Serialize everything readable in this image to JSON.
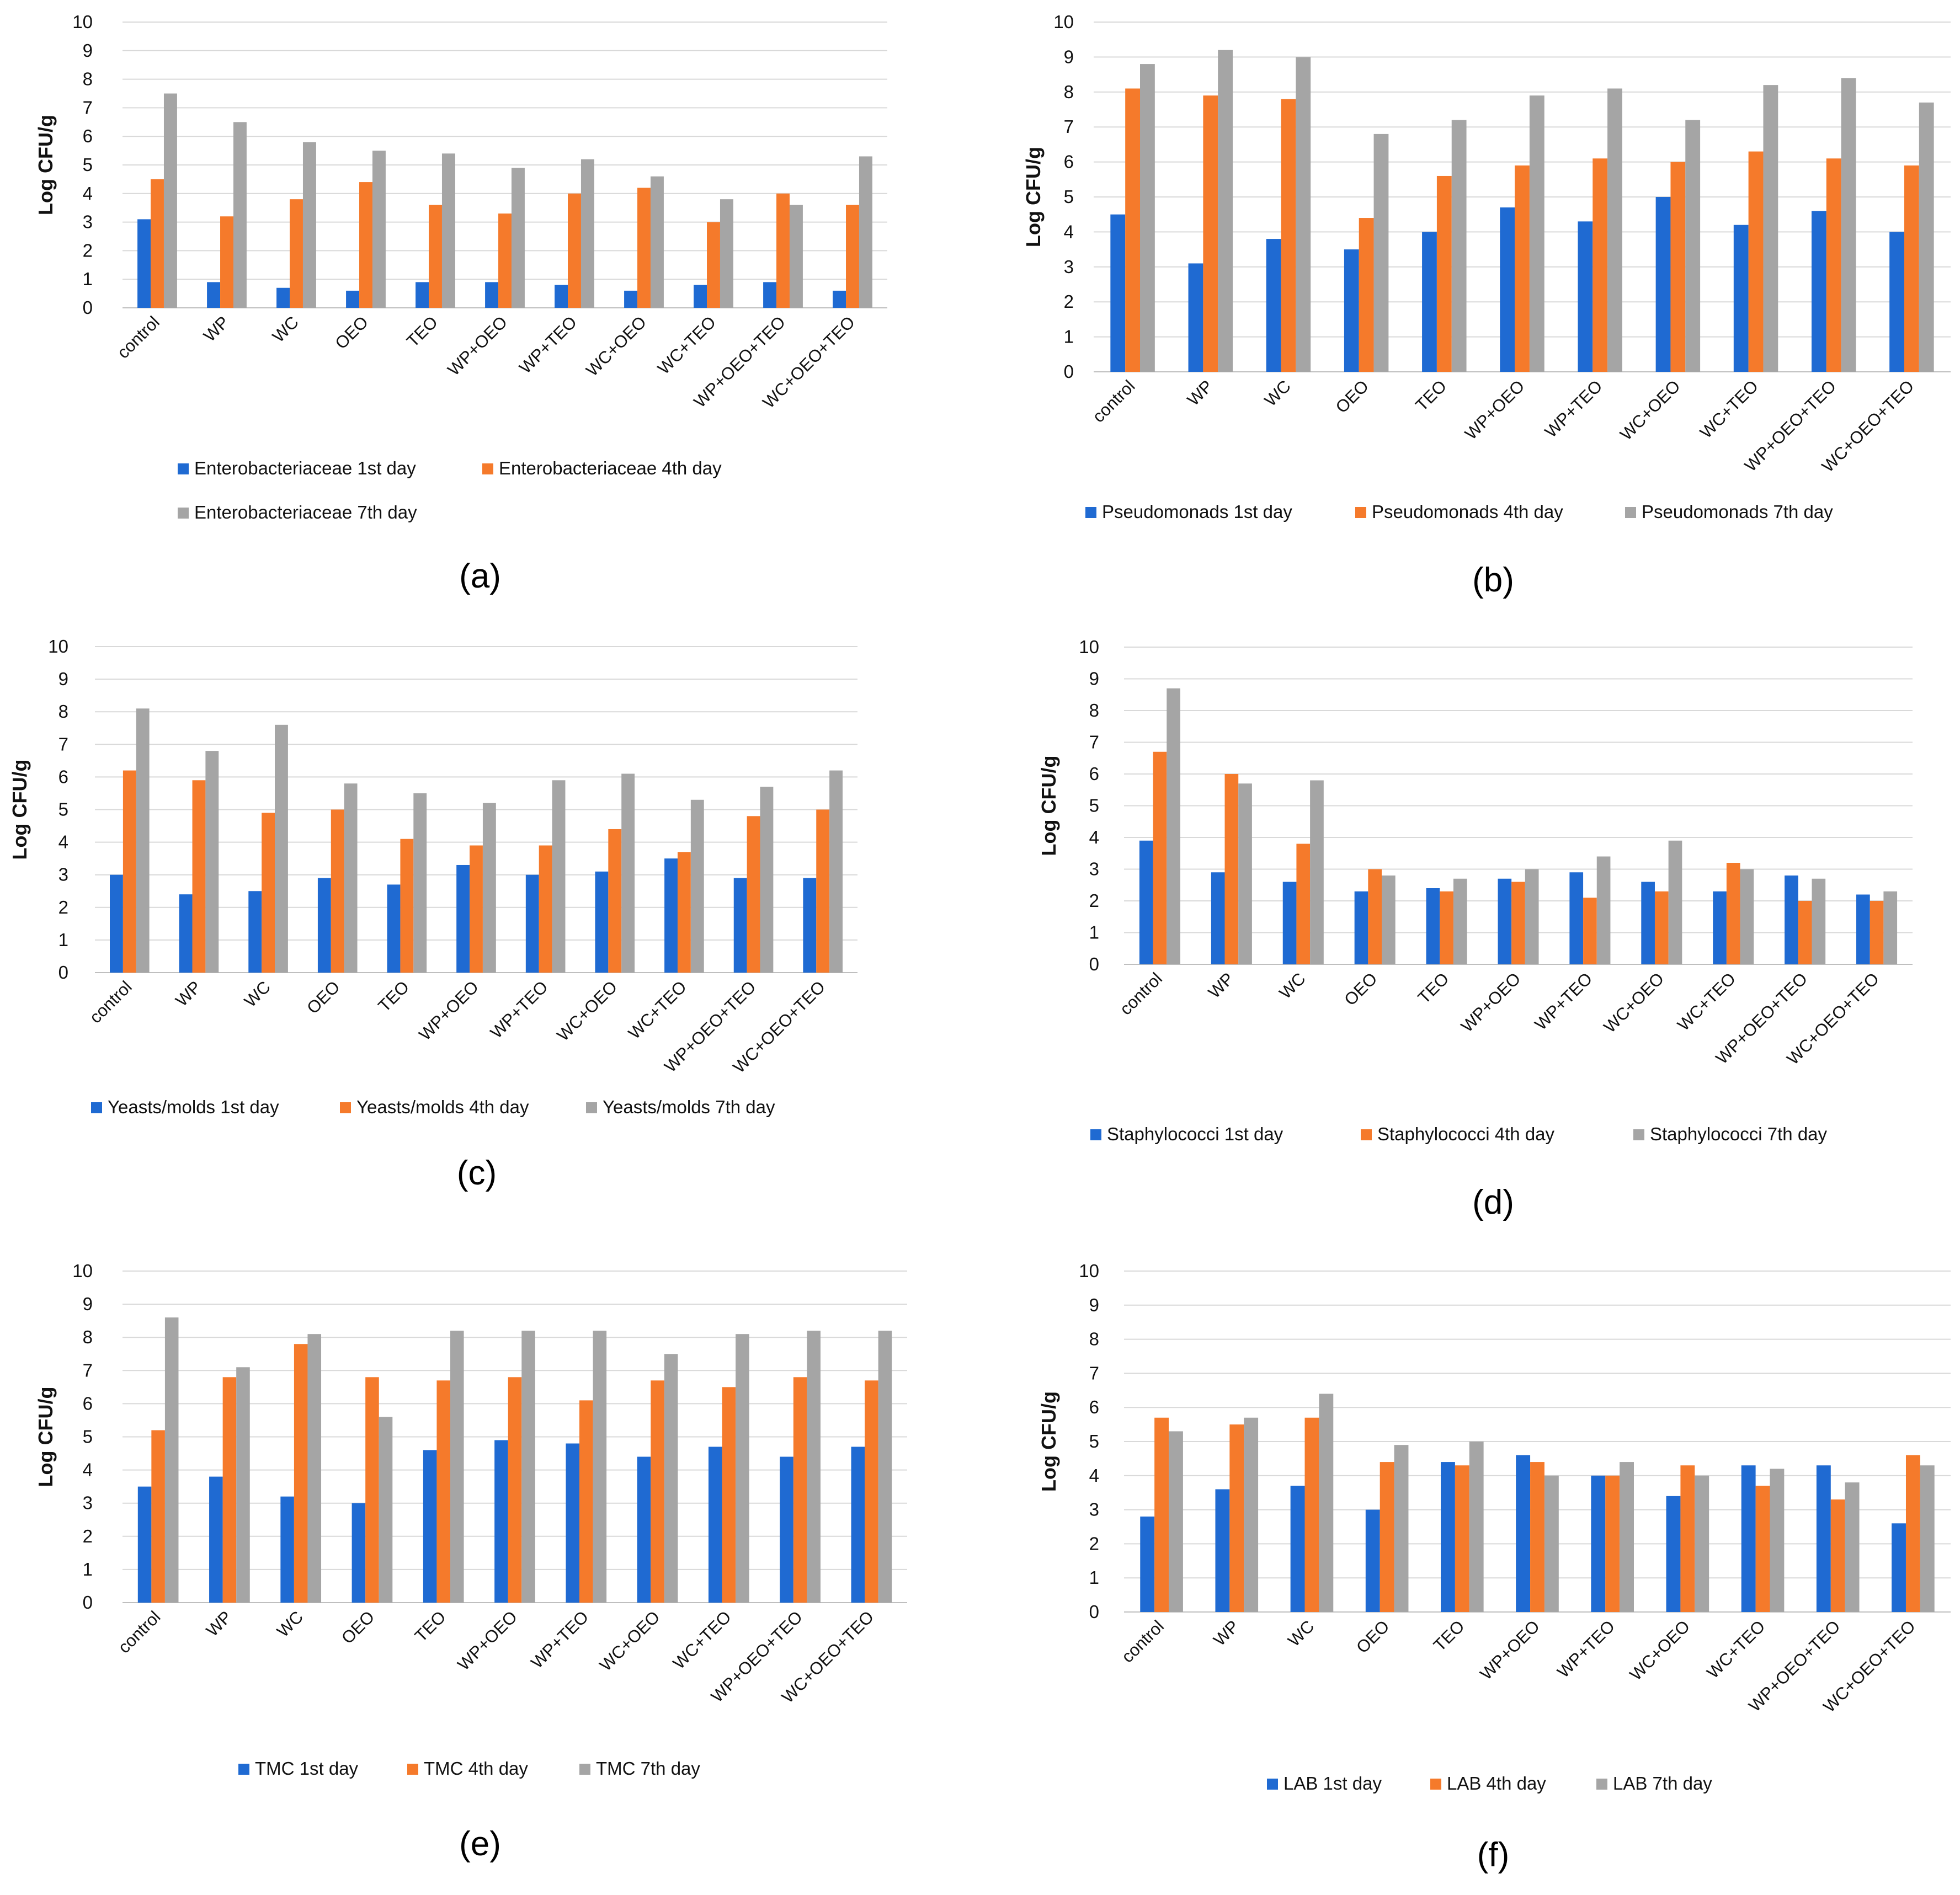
{
  "colors": {
    "day1": "#1f6ad2",
    "day4": "#f57a2b",
    "day7": "#a5a5a5"
  },
  "chart_data": [
    {
      "type": "bar",
      "panel_label": "(a)",
      "ylabel": "Log CFU/g",
      "ylim": [
        0,
        10
      ],
      "yticks": [
        "0",
        "1",
        "2",
        "3",
        "4",
        "5",
        "6",
        "7",
        "8",
        "9",
        "10"
      ],
      "categories": [
        "control",
        "WP",
        "WC",
        "OEO",
        "TEO",
        "WP+OEO",
        "WP+TEO",
        "WC+OEO",
        "WC+TEO",
        "WP+OEO+TEO",
        "WC+OEO+TEO"
      ],
      "series": [
        {
          "name": "Enterobacteriaceae 1st day",
          "values": [
            3.1,
            0.9,
            0.7,
            0.6,
            0.9,
            0.9,
            0.8,
            0.6,
            0.8,
            0.9,
            0.6
          ]
        },
        {
          "name": "Enterobacteriaceae 4th day",
          "values": [
            4.5,
            3.2,
            3.8,
            4.4,
            3.6,
            3.3,
            4.0,
            4.2,
            3.0,
            4.0,
            3.6
          ]
        },
        {
          "name": "Enterobacteriaceae 7th day",
          "values": [
            7.5,
            6.5,
            5.8,
            5.5,
            5.4,
            4.9,
            5.2,
            4.6,
            3.8,
            3.6,
            5.3
          ]
        }
      ],
      "legend_rows": [
        [
          0,
          1
        ],
        [
          2
        ]
      ]
    },
    {
      "type": "bar",
      "panel_label": "(b)",
      "ylabel": "Log CFU/g",
      "ylim": [
        0,
        10
      ],
      "yticks": [
        "0",
        "1",
        "2",
        "3",
        "4",
        "5",
        "6",
        "7",
        "8",
        "9",
        "10"
      ],
      "categories": [
        "control",
        "WP",
        "WC",
        "OEO",
        "TEO",
        "WP+OEO",
        "WP+TEO",
        "WC+OEO",
        "WC+TEO",
        "WP+OEO+TEO",
        "WC+OEO+TEO"
      ],
      "series": [
        {
          "name": "Pseudomonads 1st day",
          "values": [
            4.5,
            3.1,
            3.8,
            3.5,
            4.0,
            4.7,
            4.3,
            5.0,
            4.2,
            4.6,
            4.0
          ]
        },
        {
          "name": "Pseudomonads 4th day",
          "values": [
            8.1,
            7.9,
            7.8,
            4.4,
            5.6,
            5.9,
            6.1,
            6.0,
            6.3,
            6.1,
            5.9
          ]
        },
        {
          "name": "Pseudomonads 7th day",
          "values": [
            8.8,
            9.2,
            9.0,
            6.8,
            7.2,
            7.9,
            8.1,
            7.2,
            8.2,
            8.4,
            7.7
          ]
        }
      ],
      "legend_rows": [
        [
          0,
          1,
          2
        ]
      ]
    },
    {
      "type": "bar",
      "panel_label": "(c)",
      "ylabel": "Log CFU/g",
      "ylim": [
        0,
        10
      ],
      "yticks": [
        "0",
        "1",
        "2",
        "3",
        "4",
        "5",
        "6",
        "7",
        "8",
        "9",
        "10"
      ],
      "categories": [
        "control",
        "WP",
        "WC",
        "OEO",
        "TEO",
        "WP+OEO",
        "WP+TEO",
        "WC+OEO",
        "WC+TEO",
        "WP+OEO+TEO",
        "WC+OEO+TEO"
      ],
      "series": [
        {
          "name": "Yeasts/molds 1st day",
          "values": [
            3.0,
            2.4,
            2.5,
            2.9,
            2.7,
            3.3,
            3.0,
            3.1,
            3.5,
            2.9,
            2.9
          ]
        },
        {
          "name": "Yeasts/molds 4th day",
          "values": [
            6.2,
            5.9,
            4.9,
            5.0,
            4.1,
            3.9,
            3.9,
            4.4,
            3.7,
            4.8,
            5.0
          ]
        },
        {
          "name": "Yeasts/molds 7th day",
          "values": [
            8.1,
            6.8,
            7.6,
            5.8,
            5.5,
            5.2,
            5.9,
            6.1,
            5.3,
            5.7,
            6.2
          ]
        }
      ],
      "legend_rows": [
        [
          0,
          1,
          2
        ]
      ]
    },
    {
      "type": "bar",
      "panel_label": "(d)",
      "ylabel": "Log CFU/g",
      "ylim": [
        0,
        10
      ],
      "yticks": [
        "0",
        "1",
        "2",
        "3",
        "4",
        "5",
        "6",
        "7",
        "8",
        "9",
        "10"
      ],
      "categories": [
        "control",
        "WP",
        "WC",
        "OEO",
        "TEO",
        "WP+OEO",
        "WP+TEO",
        "WC+OEO",
        "WC+TEO",
        "WP+OEO+TEO",
        "WC+OEO+TEO"
      ],
      "series": [
        {
          "name": "Staphylococci 1st day",
          "values": [
            3.9,
            2.9,
            2.6,
            2.3,
            2.4,
            2.7,
            2.9,
            2.6,
            2.3,
            2.8,
            2.2
          ]
        },
        {
          "name": "Staphylococci 4th day",
          "values": [
            6.7,
            6.0,
            3.8,
            3.0,
            2.3,
            2.6,
            2.1,
            2.3,
            3.2,
            2.0,
            2.0
          ]
        },
        {
          "name": "Staphylococci 7th day",
          "values": [
            8.7,
            5.7,
            5.8,
            2.8,
            2.7,
            3.0,
            3.4,
            3.9,
            3.0,
            2.7,
            2.3
          ]
        }
      ],
      "legend_rows": [
        [
          0,
          1,
          2
        ]
      ]
    },
    {
      "type": "bar",
      "panel_label": "(e)",
      "ylabel": "Log CFU/g",
      "ylim": [
        0,
        10
      ],
      "yticks": [
        "0",
        "1",
        "2",
        "3",
        "4",
        "5",
        "6",
        "7",
        "8",
        "9",
        "10"
      ],
      "categories": [
        "control",
        "WP",
        "WC",
        "OEO",
        "TEO",
        "WP+OEO",
        "WP+TEO",
        "WC+OEO",
        "WC+TEO",
        "WP+OEO+TEO",
        "WC+OEO+TEO"
      ],
      "series": [
        {
          "name": "TMC 1st day",
          "values": [
            3.5,
            3.8,
            3.2,
            3.0,
            4.6,
            4.9,
            4.8,
            4.4,
            4.7,
            4.4,
            4.7
          ]
        },
        {
          "name": "TMC 4th day",
          "values": [
            5.2,
            6.8,
            7.8,
            6.8,
            6.7,
            6.8,
            6.1,
            6.7,
            6.5,
            6.8,
            6.7
          ]
        },
        {
          "name": "TMC 7th day",
          "values": [
            8.6,
            7.1,
            8.1,
            5.6,
            8.2,
            8.2,
            8.2,
            7.5,
            8.1,
            8.2,
            8.2
          ]
        }
      ],
      "legend_rows": [
        [
          0,
          1,
          2
        ]
      ]
    },
    {
      "type": "bar",
      "panel_label": "(f)",
      "ylabel": "Log CFU/g",
      "ylim": [
        0,
        10
      ],
      "yticks": [
        "0",
        "1",
        "2",
        "3",
        "4",
        "5",
        "6",
        "7",
        "8",
        "9",
        "10"
      ],
      "categories": [
        "control",
        "WP",
        "WC",
        "OEO",
        "TEO",
        "WP+OEO",
        "WP+TEO",
        "WC+OEO",
        "WC+TEO",
        "WP+OEO+TEO",
        "WC+OEO+TEO"
      ],
      "series": [
        {
          "name": "LAB 1st day",
          "values": [
            2.8,
            3.6,
            3.7,
            3.0,
            4.4,
            4.6,
            4.0,
            3.4,
            4.3,
            4.3,
            2.6
          ]
        },
        {
          "name": "LAB 4th day",
          "values": [
            5.7,
            5.5,
            5.7,
            4.4,
            4.3,
            4.4,
            4.0,
            4.3,
            3.7,
            3.3,
            4.6
          ]
        },
        {
          "name": "LAB 7th day",
          "values": [
            5.3,
            5.7,
            6.4,
            4.9,
            5.0,
            4.0,
            4.4,
            4.0,
            4.2,
            3.8,
            4.3
          ]
        }
      ],
      "legend_rows": [
        [
          0,
          1,
          2
        ]
      ]
    }
  ]
}
